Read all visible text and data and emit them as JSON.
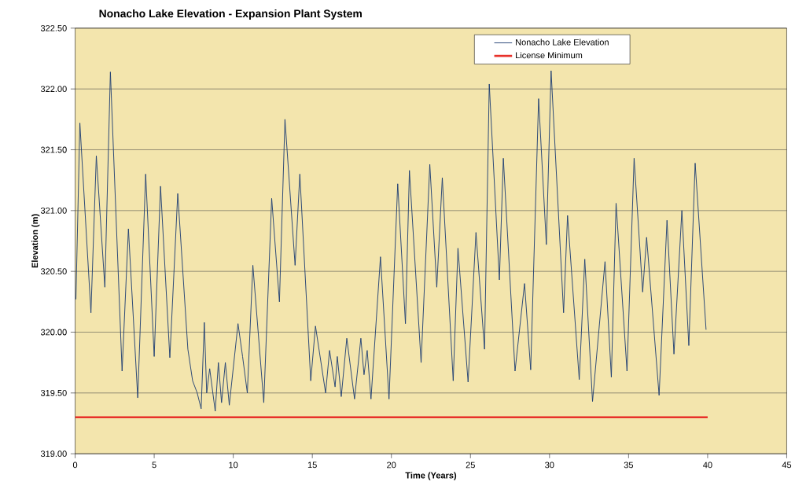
{
  "chart_data": {
    "type": "line",
    "title": "Nonacho Lake Elevation - Expansion Plant System",
    "xlabel": "Time (Years)",
    "ylabel": "Elevation (m)",
    "series": [
      {
        "name": "Nonacho Lake Elevation",
        "color": "#1f3f73",
        "x": [
          0.05,
          0.3,
          1.0,
          1.34,
          1.88,
          2.23,
          2.97,
          3.37,
          3.96,
          4.46,
          5.0,
          5.4,
          5.99,
          6.49,
          7.13,
          7.43,
          7.72,
          7.97,
          8.17,
          8.32,
          8.51,
          8.86,
          9.06,
          9.26,
          9.5,
          9.75,
          10.3,
          10.59,
          10.89,
          11.24,
          11.93,
          12.43,
          12.92,
          13.27,
          13.91,
          14.21,
          14.9,
          15.2,
          15.84,
          16.09,
          16.44,
          16.58,
          16.83,
          17.18,
          17.67,
          18.07,
          18.27,
          18.47,
          18.71,
          19.31,
          19.85,
          20.4,
          20.89,
          21.14,
          21.88,
          22.43,
          22.87,
          23.22,
          23.91,
          24.21,
          24.85,
          25.35,
          25.89,
          26.19,
          26.83,
          27.08,
          27.82,
          28.42,
          28.81,
          29.31,
          29.8,
          30.1,
          30.89,
          31.14,
          31.88,
          32.23,
          32.72,
          33.51,
          33.91,
          34.21,
          34.9,
          35.35,
          35.89,
          36.14,
          36.93,
          37.43,
          37.87,
          38.37,
          38.81,
          39.21,
          39.9
        ],
        "values": [
          320.27,
          321.72,
          320.16,
          321.45,
          320.37,
          322.14,
          319.68,
          320.85,
          319.46,
          321.3,
          319.8,
          321.2,
          319.79,
          321.14,
          319.86,
          319.6,
          319.5,
          319.37,
          320.08,
          319.5,
          319.7,
          319.35,
          319.75,
          319.42,
          319.75,
          319.4,
          320.07,
          319.8,
          319.5,
          320.55,
          319.42,
          321.1,
          320.25,
          321.75,
          320.55,
          321.3,
          319.6,
          320.05,
          319.5,
          319.85,
          319.55,
          319.8,
          319.47,
          319.95,
          319.45,
          319.95,
          319.65,
          319.85,
          319.45,
          320.62,
          319.45,
          321.22,
          320.07,
          321.33,
          319.75,
          321.38,
          320.37,
          321.27,
          319.6,
          320.69,
          319.59,
          320.82,
          319.86,
          322.04,
          320.43,
          321.43,
          319.68,
          320.4,
          319.69,
          321.92,
          320.72,
          322.15,
          320.16,
          320.96,
          319.61,
          320.6,
          319.43,
          320.58,
          319.63,
          321.06,
          319.68,
          321.43,
          320.33,
          320.78,
          319.48,
          320.92,
          319.82,
          321.0,
          319.89,
          321.39,
          320.02
        ]
      },
      {
        "name": "License Minimum",
        "color": "#e8312a",
        "x": [
          0,
          40
        ],
        "values": [
          319.3,
          319.3
        ]
      }
    ],
    "xlim": [
      0,
      45
    ],
    "xticks": [
      0,
      5,
      10,
      15,
      20,
      25,
      30,
      35,
      40,
      45
    ],
    "ylim": [
      319.0,
      322.5
    ],
    "yticks": [
      {
        "value": 319.0,
        "label": "319.00"
      },
      {
        "value": 319.5,
        "label": "319.50"
      },
      {
        "value": 320.0,
        "label": "320.00"
      },
      {
        "value": 320.5,
        "label": "320.50"
      },
      {
        "value": 321.0,
        "label": "321.00"
      },
      {
        "value": 321.5,
        "label": "321.50"
      },
      {
        "value": 322.0,
        "label": "322.00"
      },
      {
        "value": 322.5,
        "label": "322.50"
      }
    ],
    "grid": "y",
    "legend": "top right",
    "marker": "none",
    "line_style": "solid"
  }
}
